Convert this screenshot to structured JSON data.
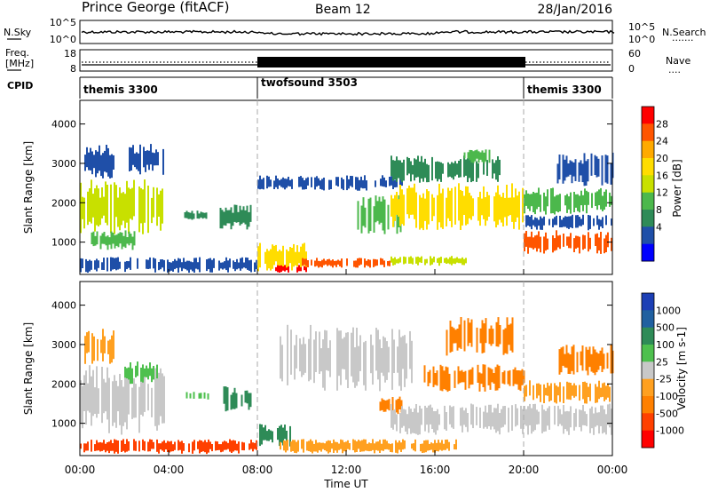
{
  "header": {
    "station": "Prince George (fitACF)",
    "beam": "Beam 12",
    "date": "28/Jan/2016"
  },
  "nsky_panel": {
    "left_label": "N.Sky",
    "left_ticks": [
      "10^5",
      "10^0"
    ],
    "right_ticks": [
      "10^5",
      "10^0"
    ],
    "right_label": "N.Search",
    "right_dots": "......."
  },
  "freq_panel": {
    "left_label_1": "Freq.",
    "left_label_2": "[MHz]",
    "left_ticks": [
      "18",
      "8"
    ],
    "right_ticks": [
      "60",
      "0"
    ],
    "right_label": "Nave",
    "right_dots": "...."
  },
  "cpid_panel": {
    "label": "CPID",
    "segments": [
      {
        "name": "themis 3300",
        "start_hour": 0,
        "end_hour": 8
      },
      {
        "name": "twofsound 3503",
        "start_hour": 8,
        "end_hour": 20
      },
      {
        "name": "themis 3300",
        "start_hour": 20,
        "end_hour": 24
      }
    ]
  },
  "x_axis": {
    "label": "Time UT",
    "ticks": [
      "00:00",
      "04:00",
      "08:00",
      "12:00",
      "16:00",
      "20:00",
      "00:00"
    ],
    "range_hours": [
      0,
      24
    ]
  },
  "chart_data": [
    {
      "type": "heatmap",
      "name": "power",
      "ylabel": "Slant Range [km]",
      "yticks": [
        1000,
        2000,
        3000,
        4000
      ],
      "ylim": [
        180,
        4600
      ],
      "colorbar": {
        "label": "Power [dB]",
        "ticks": [
          "28",
          "24",
          "20",
          "16",
          "12",
          "8",
          "4"
        ],
        "colors": [
          "#ff0000",
          "#ff5500",
          "#ffaa00",
          "#ffdd00",
          "#c8e000",
          "#4cb84c",
          "#2e8b57",
          "#1f4fa8",
          "#0000ff"
        ]
      },
      "regions": [
        {
          "t0": 0.0,
          "t1": 3.8,
          "r0": 1200,
          "r1": 2600,
          "c": 4
        },
        {
          "t0": 0.5,
          "t1": 2.5,
          "r0": 800,
          "r1": 1300,
          "c": 5
        },
        {
          "t0": 0.2,
          "t1": 1.5,
          "r0": 2600,
          "r1": 3500,
          "c": 7
        },
        {
          "t0": 2.2,
          "t1": 3.8,
          "r0": 2700,
          "r1": 3500,
          "c": 7
        },
        {
          "t0": 0.0,
          "t1": 8.0,
          "r0": 220,
          "r1": 620,
          "c": 7
        },
        {
          "t0": 4.7,
          "t1": 5.8,
          "r0": 1550,
          "r1": 1800,
          "c": 6
        },
        {
          "t0": 6.3,
          "t1": 7.7,
          "r0": 1300,
          "r1": 1950,
          "c": 6
        },
        {
          "t0": 8.0,
          "t1": 10.2,
          "r0": 260,
          "r1": 1000,
          "c": 3
        },
        {
          "t0": 8.8,
          "t1": 10.2,
          "r0": 220,
          "r1": 420,
          "c": 0
        },
        {
          "t0": 10.0,
          "t1": 14.0,
          "r0": 350,
          "r1": 600,
          "c": 1
        },
        {
          "t0": 14.0,
          "t1": 17.5,
          "r0": 400,
          "r1": 650,
          "c": 4
        },
        {
          "t0": 8.0,
          "t1": 14.5,
          "r0": 2300,
          "r1": 2700,
          "c": 7
        },
        {
          "t0": 12.5,
          "t1": 14.5,
          "r0": 1200,
          "r1": 2200,
          "c": 5
        },
        {
          "t0": 14.0,
          "t1": 20.0,
          "r0": 1300,
          "r1": 2500,
          "c": 3
        },
        {
          "t0": 14.0,
          "t1": 19.0,
          "r0": 2500,
          "r1": 3200,
          "c": 6
        },
        {
          "t0": 20.0,
          "t1": 24.0,
          "r0": 700,
          "r1": 1300,
          "c": 1
        },
        {
          "t0": 20.0,
          "t1": 24.0,
          "r0": 1300,
          "r1": 1700,
          "c": 7
        },
        {
          "t0": 20.0,
          "t1": 24.0,
          "r0": 1700,
          "r1": 2400,
          "c": 5
        },
        {
          "t0": 21.5,
          "t1": 24.0,
          "r0": 2400,
          "r1": 3300,
          "c": 7
        },
        {
          "t0": 17.3,
          "t1": 18.5,
          "r0": 3000,
          "r1": 3400,
          "c": 5
        }
      ]
    },
    {
      "type": "heatmap",
      "name": "velocity",
      "ylabel": "Slant Range [km]",
      "yticks": [
        1000,
        2000,
        3000,
        4000
      ],
      "ylim": [
        180,
        4600
      ],
      "colorbar": {
        "label": "Velocity [m s-1]",
        "ticks": [
          "1000",
          "500",
          "100",
          "25",
          "-25",
          "-100",
          "-500",
          "-1000"
        ],
        "colors": [
          "#1c3fb5",
          "#2060a0",
          "#2e8b57",
          "#4ec04e",
          "#c8c8c8",
          "#ffa020",
          "#ff8000",
          "#ff4000",
          "#ff0000"
        ]
      },
      "regions": [
        {
          "t0": 0.0,
          "t1": 3.8,
          "r0": 700,
          "r1": 2500,
          "c": 4
        },
        {
          "t0": 0.2,
          "t1": 1.5,
          "r0": 2500,
          "r1": 3400,
          "c": 5
        },
        {
          "t0": 2.0,
          "t1": 3.5,
          "r0": 2000,
          "r1": 2600,
          "c": 3
        },
        {
          "t0": 0.0,
          "t1": 8.0,
          "r0": 220,
          "r1": 600,
          "c": 7
        },
        {
          "t0": 4.7,
          "t1": 5.8,
          "r0": 1550,
          "r1": 1800,
          "c": 3
        },
        {
          "t0": 6.3,
          "t1": 7.7,
          "r0": 1300,
          "r1": 1950,
          "c": 2
        },
        {
          "t0": 8.0,
          "t1": 9.5,
          "r0": 400,
          "r1": 1000,
          "c": 2
        },
        {
          "t0": 9.0,
          "t1": 17.0,
          "r0": 230,
          "r1": 600,
          "c": 5
        },
        {
          "t0": 9.0,
          "t1": 15.0,
          "r0": 1800,
          "r1": 3500,
          "c": 4
        },
        {
          "t0": 13.5,
          "t1": 14.5,
          "r0": 1200,
          "r1": 1700,
          "c": 6
        },
        {
          "t0": 14.0,
          "t1": 20.0,
          "r0": 700,
          "r1": 1500,
          "c": 4
        },
        {
          "t0": 15.5,
          "t1": 20.0,
          "r0": 1800,
          "r1": 2500,
          "c": 6
        },
        {
          "t0": 16.5,
          "t1": 19.5,
          "r0": 2700,
          "r1": 3700,
          "c": 6
        },
        {
          "t0": 20.0,
          "t1": 24.0,
          "r0": 700,
          "r1": 1500,
          "c": 4
        },
        {
          "t0": 20.0,
          "t1": 24.0,
          "r0": 1500,
          "r1": 2100,
          "c": 5
        },
        {
          "t0": 21.5,
          "t1": 24.0,
          "r0": 2200,
          "r1": 3000,
          "c": 6
        }
      ]
    }
  ]
}
